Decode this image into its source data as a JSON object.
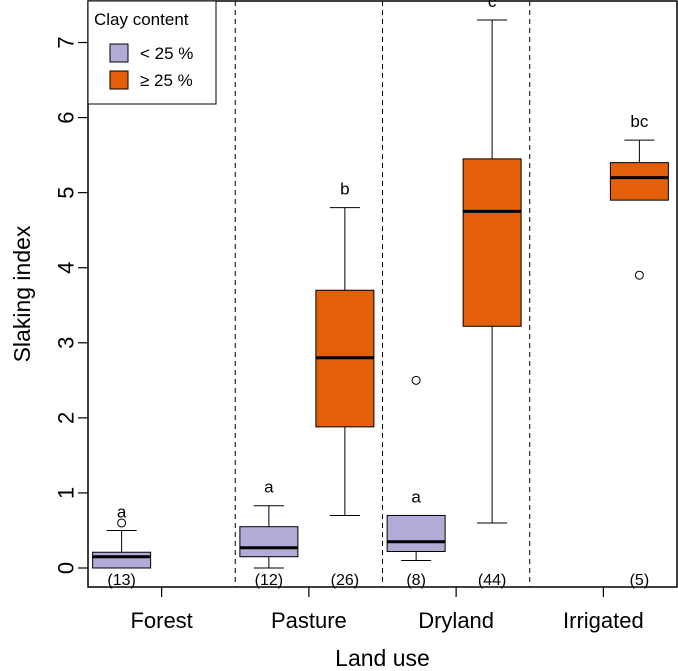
{
  "chart_data": {
    "type": "boxplot",
    "xlabel": "Land use",
    "ylabel": "Slaking index",
    "ylim": [
      0,
      7.4
    ],
    "yticks": [
      0,
      1,
      2,
      3,
      4,
      5,
      6,
      7
    ],
    "categories": [
      "Forest",
      "Pasture",
      "Dryland",
      "Irrigated"
    ],
    "legend": {
      "title": "Clay content",
      "position": "top-left",
      "entries": [
        {
          "label": "< 25 %",
          "color": "#b3aad7"
        },
        {
          "label": "≥ 25 %",
          "color": "#e35f0a"
        }
      ]
    },
    "boxes": [
      {
        "category": "Forest",
        "group": "< 25 %",
        "whisker_low": 0.0,
        "q1": 0.0,
        "median": 0.15,
        "q3": 0.21,
        "whisker_high": 0.5,
        "outliers": [
          0.6
        ],
        "letter": "a",
        "n_label": "(13)"
      },
      {
        "category": "Pasture",
        "group": "< 25 %",
        "whisker_low": 0.0,
        "q1": 0.15,
        "median": 0.27,
        "q3": 0.55,
        "whisker_high": 0.83,
        "outliers": [],
        "letter": "a",
        "n_label": "(12)"
      },
      {
        "category": "Pasture",
        "group": "≥ 25 %",
        "whisker_low": 0.7,
        "q1": 1.88,
        "median": 2.8,
        "q3": 3.7,
        "whisker_high": 4.8,
        "outliers": [],
        "letter": "b",
        "n_label": "(26)"
      },
      {
        "category": "Dryland",
        "group": "< 25 %",
        "whisker_low": 0.1,
        "q1": 0.22,
        "median": 0.35,
        "q3": 0.7,
        "whisker_high": 0.7,
        "outliers": [
          2.5
        ],
        "letter": "a",
        "n_label": "(8)"
      },
      {
        "category": "Dryland",
        "group": "≥ 25 %",
        "whisker_low": 0.6,
        "q1": 3.22,
        "median": 4.75,
        "q3": 5.45,
        "whisker_high": 7.3,
        "outliers": [],
        "letter": "c",
        "n_label": "(44)"
      },
      {
        "category": "Irrigated",
        "group": "≥ 25 %",
        "whisker_low": 4.9,
        "q1": 4.9,
        "median": 5.2,
        "q3": 5.4,
        "whisker_high": 5.7,
        "outliers": [
          3.9
        ],
        "letter": "bc",
        "n_label": "(5)"
      }
    ],
    "colors": {
      "low_clay": "#b3aad7",
      "high_clay": "#e35f0a",
      "stroke": "#000000"
    },
    "grid": false
  }
}
